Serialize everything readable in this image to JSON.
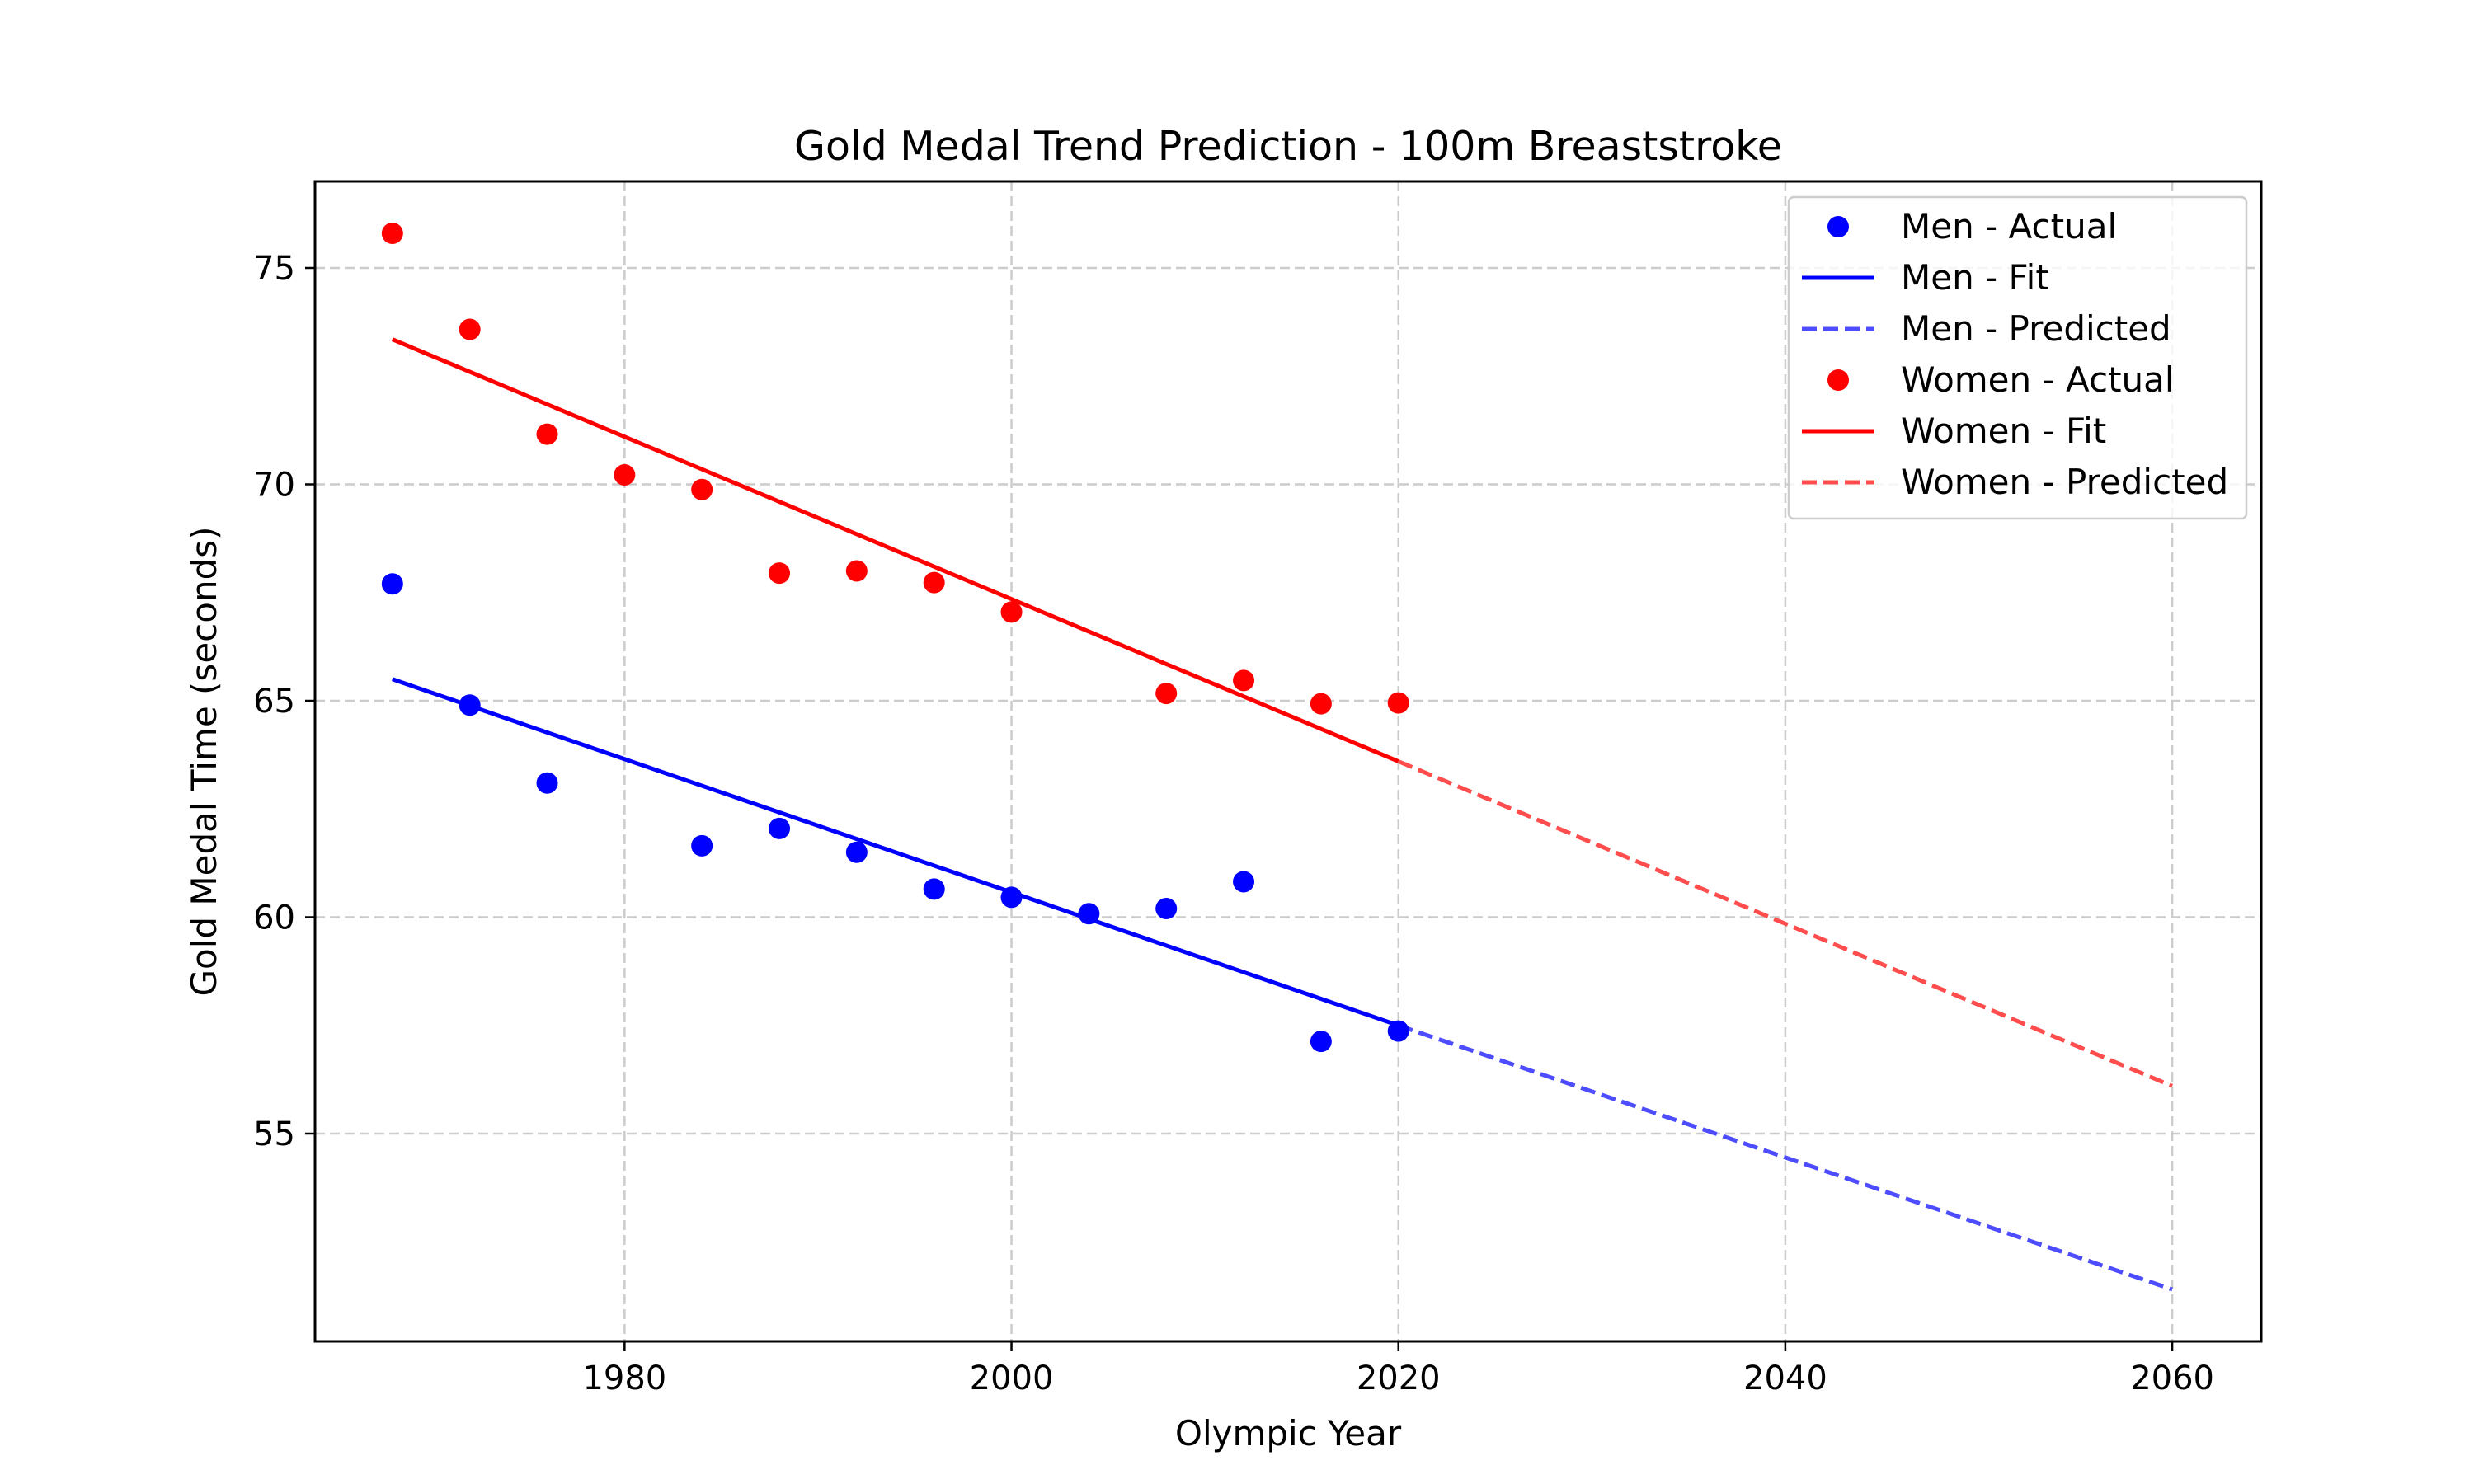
{
  "chart_data": {
    "type": "scatter",
    "title": "Gold Medal Trend Prediction - 100m Breaststroke",
    "xlabel": "Olympic Year",
    "ylabel": "Gold Medal Time (seconds)",
    "xlim": [
      1964,
      2064.6
    ],
    "ylim": [
      50.2,
      77.0
    ],
    "xticks": [
      1980,
      2000,
      2020,
      2040,
      2060
    ],
    "yticks": [
      55,
      60,
      65,
      70,
      75
    ],
    "grid": true,
    "legend_position": "top-right",
    "series": [
      {
        "name": "Men - Actual",
        "kind": "points",
        "color": "#0000ff",
        "points": [
          [
            1968,
            67.7
          ],
          [
            1972,
            64.9
          ],
          [
            1976,
            63.1
          ],
          [
            1984,
            61.65
          ],
          [
            1988,
            62.05
          ],
          [
            1992,
            61.5
          ],
          [
            1996,
            60.65
          ],
          [
            2000,
            60.46
          ],
          [
            2004,
            60.08
          ],
          [
            2008,
            60.2
          ],
          [
            2012,
            60.82
          ],
          [
            2016,
            57.13
          ],
          [
            2020,
            57.37
          ]
        ]
      },
      {
        "name": "Men - Fit",
        "kind": "line",
        "color": "#0000ff",
        "points": [
          [
            1968,
            65.5
          ],
          [
            2020,
            57.5
          ]
        ]
      },
      {
        "name": "Men - Predicted",
        "kind": "dashed",
        "color": "#4d4dff",
        "points": [
          [
            2020,
            57.5
          ],
          [
            2060,
            51.4
          ]
        ]
      },
      {
        "name": "Women - Actual",
        "kind": "points",
        "color": "#ff0000",
        "points": [
          [
            1968,
            75.8
          ],
          [
            1972,
            73.58
          ],
          [
            1976,
            71.16
          ],
          [
            1980,
            70.22
          ],
          [
            1984,
            69.88
          ],
          [
            1988,
            67.95
          ],
          [
            1992,
            68.0
          ],
          [
            1996,
            67.73
          ],
          [
            2000,
            67.05
          ],
          [
            2008,
            65.17
          ],
          [
            2012,
            65.47
          ],
          [
            2016,
            64.93
          ],
          [
            2020,
            64.95
          ]
        ]
      },
      {
        "name": "Women - Fit",
        "kind": "line",
        "color": "#ff0000",
        "points": [
          [
            1968,
            73.35
          ],
          [
            2020,
            63.6
          ]
        ]
      },
      {
        "name": "Women - Predicted",
        "kind": "dashed",
        "color": "#ff4d4d",
        "points": [
          [
            2020,
            63.6
          ],
          [
            2060,
            56.1
          ]
        ]
      }
    ]
  }
}
